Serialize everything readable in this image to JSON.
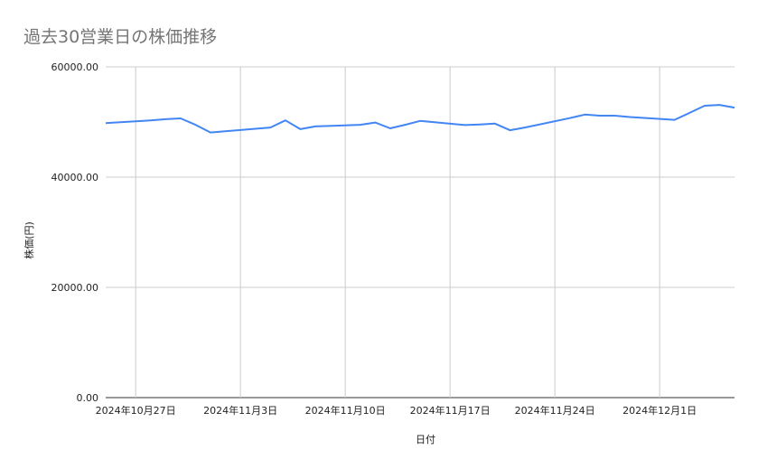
{
  "chart_data": {
    "type": "line",
    "title": "過去30営業日の株価推移",
    "xlabel": "日付",
    "ylabel": "株価(円)",
    "ylim": [
      0,
      60000
    ],
    "xlim": [
      "2024-10-25",
      "2024-12-06"
    ],
    "grid": true,
    "legend": "none",
    "line_color": "#4285f4",
    "yticks": [
      "0.00",
      "20000.00",
      "40000.00",
      "60000.00"
    ],
    "ytick_values": [
      0,
      20000,
      40000,
      60000
    ],
    "xticks": [
      {
        "date": "2024-10-27",
        "label": "2024年10月27日"
      },
      {
        "date": "2024-11-03",
        "label": "2024年11月3日"
      },
      {
        "date": "2024-11-10",
        "label": "2024年11月10日"
      },
      {
        "date": "2024-11-17",
        "label": "2024年11月17日"
      },
      {
        "date": "2024-11-24",
        "label": "2024年11月24日"
      },
      {
        "date": "2024-12-01",
        "label": "2024年12月1日"
      }
    ],
    "x": [
      "2024-10-25",
      "2024-10-28",
      "2024-10-29",
      "2024-10-30",
      "2024-10-31",
      "2024-11-01",
      "2024-11-05",
      "2024-11-06",
      "2024-11-07",
      "2024-11-08",
      "2024-11-11",
      "2024-11-12",
      "2024-11-13",
      "2024-11-14",
      "2024-11-15",
      "2024-11-18",
      "2024-11-19",
      "2024-11-20",
      "2024-11-21",
      "2024-11-22",
      "2024-11-25",
      "2024-11-26",
      "2024-11-27",
      "2024-11-28",
      "2024-11-29",
      "2024-12-02",
      "2024-12-03",
      "2024-12-04",
      "2024-12-05",
      "2024-12-06"
    ],
    "values": [
      49800,
      50300,
      50500,
      50650,
      49500,
      48100,
      49000,
      50300,
      48700,
      49200,
      49500,
      49900,
      48850,
      49500,
      50200,
      49450,
      49550,
      49700,
      48500,
      49000,
      50700,
      51350,
      51150,
      51150,
      50900,
      50400,
      51650,
      52950,
      53100,
      52600
    ]
  }
}
